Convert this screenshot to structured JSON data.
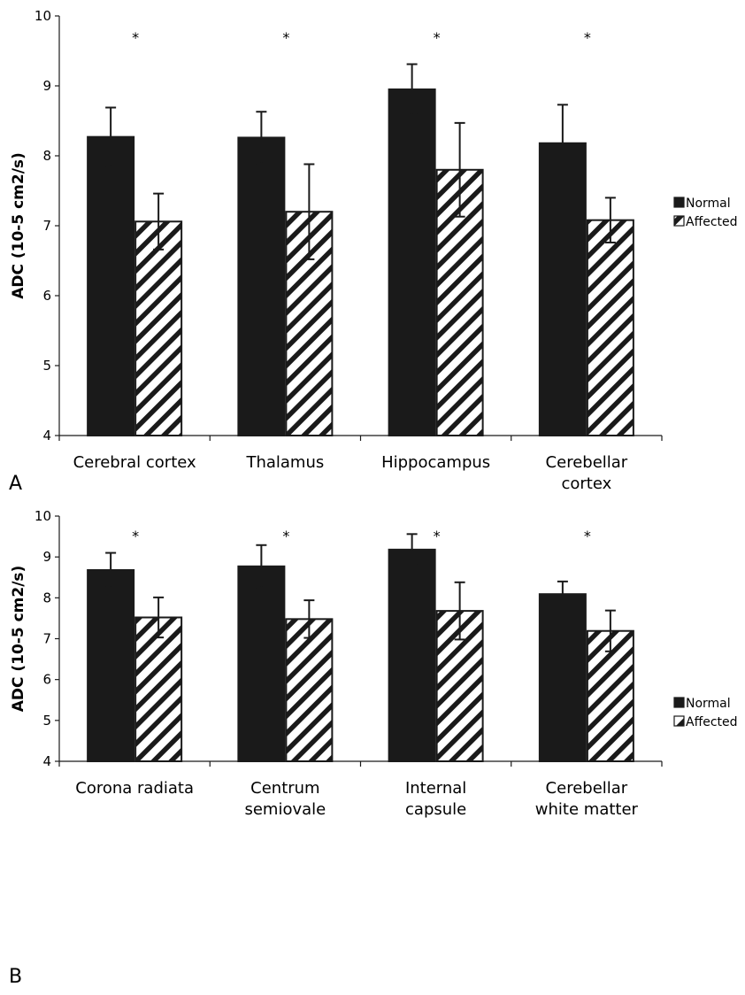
{
  "chart_data": [
    {
      "type": "bar",
      "panel": "A",
      "ylabel": "ADC (10-5 cm2/s)",
      "ylim": [
        4,
        10
      ],
      "yticks": [
        4,
        5,
        6,
        7,
        8,
        9,
        10
      ],
      "grid": false,
      "legend_position": "right",
      "categories": [
        [
          "Cerebral cortex"
        ],
        [
          "Thalamus"
        ],
        [
          "Hippocampus"
        ],
        [
          "Cerebellar",
          "cortex"
        ]
      ],
      "series": [
        {
          "name": "Normal",
          "fill": "solid",
          "color": "#1a1a1a",
          "values": [
            8.27,
            8.26,
            8.95,
            8.18
          ],
          "errors": [
            0.42,
            0.37,
            0.36,
            0.55
          ]
        },
        {
          "name": "Affected",
          "fill": "hatched",
          "color": "#1a1a1a",
          "values": [
            7.06,
            7.2,
            7.8,
            7.08
          ],
          "errors": [
            0.4,
            0.68,
            0.67,
            0.32
          ]
        }
      ],
      "significance_marks": [
        "*",
        "*",
        "*",
        "*"
      ]
    },
    {
      "type": "bar",
      "panel": "B",
      "ylabel": "ADC (10-5 cm2/s)",
      "ylim": [
        4,
        10
      ],
      "yticks": [
        4,
        5,
        6,
        7,
        8,
        9,
        10
      ],
      "grid": false,
      "legend_position": "right",
      "categories": [
        [
          "Corona radiata"
        ],
        [
          "Centrum",
          "semiovale"
        ],
        [
          "Internal",
          "capsule"
        ],
        [
          "Cerebellar",
          "white matter"
        ]
      ],
      "series": [
        {
          "name": "Normal",
          "fill": "solid",
          "color": "#1a1a1a",
          "values": [
            8.68,
            8.77,
            9.18,
            8.09
          ],
          "errors": [
            0.42,
            0.52,
            0.38,
            0.31
          ]
        },
        {
          "name": "Affected",
          "fill": "hatched",
          "color": "#1a1a1a",
          "values": [
            7.52,
            7.48,
            7.68,
            7.19
          ],
          "errors": [
            0.49,
            0.46,
            0.7,
            0.5
          ]
        }
      ],
      "significance_marks": [
        "*",
        "*",
        "*",
        "*"
      ]
    }
  ]
}
